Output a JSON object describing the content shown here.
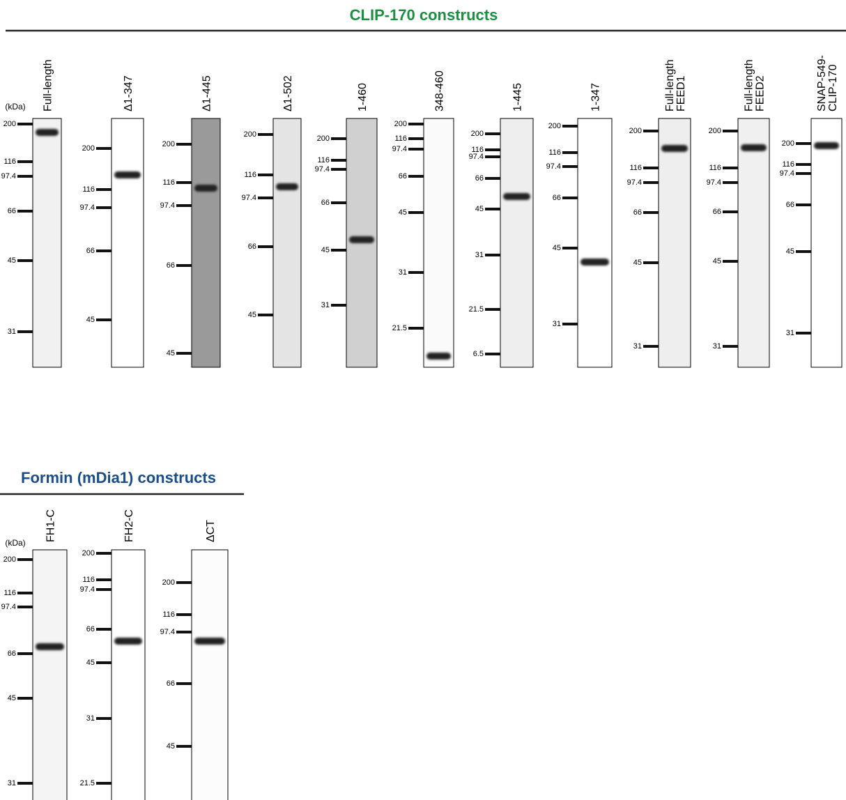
{
  "sections": [
    {
      "title": "CLIP-170 constructs",
      "unit": "(kDa)",
      "lanes": [
        {
          "label": [
            "Full-length"
          ],
          "markers": [
            "200",
            "116",
            "97.4",
            "66",
            "45",
            "31"
          ]
        },
        {
          "label": [
            "Δ1-347"
          ],
          "markers": [
            "200",
            "116",
            "97.4",
            "66",
            "45"
          ]
        },
        {
          "label": [
            "Δ1-445"
          ],
          "markers": [
            "200",
            "116",
            "97.4",
            "66",
            "45"
          ]
        },
        {
          "label": [
            "Δ1-502"
          ],
          "markers": [
            "200",
            "116",
            "97.4",
            "66",
            "45"
          ]
        },
        {
          "label": [
            "1-460"
          ],
          "markers": [
            "200",
            "116",
            "97.4",
            "66",
            "45",
            "31"
          ]
        },
        {
          "label": [
            "348-460"
          ],
          "markers": [
            "200",
            "116",
            "97.4",
            "66",
            "45",
            "31",
            "21.5"
          ]
        },
        {
          "label": [
            "1-445"
          ],
          "markers": [
            "200",
            "116",
            "97.4",
            "66",
            "45",
            "31",
            "21.5",
            "6.5"
          ]
        },
        {
          "label": [
            "1-347"
          ],
          "markers": [
            "200",
            "116",
            "97.4",
            "66",
            "45",
            "31"
          ]
        },
        {
          "label": [
            "Full-length",
            "FEED1"
          ],
          "markers": [
            "200",
            "116",
            "97.4",
            "66",
            "45",
            "31"
          ]
        },
        {
          "label": [
            "Full-length",
            "FEED2"
          ],
          "markers": [
            "200",
            "116",
            "97.4",
            "66",
            "45",
            "31"
          ]
        },
        {
          "label": [
            "SNAP-549-",
            "CLIP-170"
          ],
          "markers": [
            "200",
            "116",
            "97.4",
            "66",
            "45",
            "31"
          ]
        }
      ]
    },
    {
      "title": "Formin (mDia1) constructs",
      "unit": "(kDa)",
      "lanes": [
        {
          "label": [
            "FH1-C"
          ],
          "markers": [
            "200",
            "116",
            "97.4",
            "66",
            "45",
            "31"
          ]
        },
        {
          "label": [
            "FH2-C"
          ],
          "markers": [
            "200",
            "116",
            "97.4",
            "66",
            "45",
            "31",
            "21.5"
          ]
        },
        {
          "label": [
            "ΔCT"
          ],
          "markers": [
            "200",
            "116",
            "97.4",
            "66",
            "45"
          ]
        }
      ]
    }
  ]
}
